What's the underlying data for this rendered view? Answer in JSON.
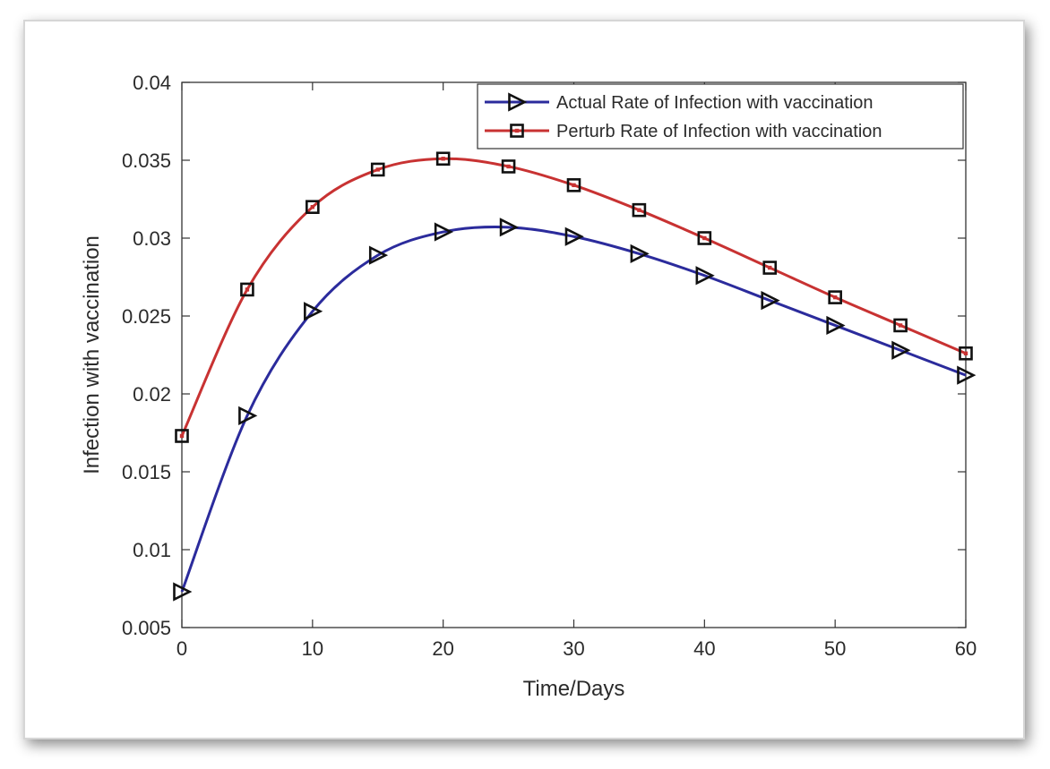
{
  "chart_data": {
    "type": "line",
    "xlabel": "Time/Days",
    "ylabel": "Infection with vaccination",
    "xlim": [
      0,
      60
    ],
    "ylim": [
      0.005,
      0.04
    ],
    "x_ticks": [
      0,
      10,
      20,
      30,
      40,
      50,
      60
    ],
    "x_tick_labels": [
      "0",
      "10",
      "20",
      "30",
      "40",
      "50",
      "60"
    ],
    "y_ticks": [
      0.005,
      0.01,
      0.015,
      0.02,
      0.025,
      0.03,
      0.035,
      0.04
    ],
    "y_tick_labels": [
      "0.005",
      "0.01",
      "0.015",
      "0.02",
      "0.025",
      "0.03",
      "0.035",
      "0.04"
    ],
    "grid": false,
    "legend_position": "top-right",
    "x": [
      0,
      5,
      10,
      15,
      20,
      25,
      30,
      35,
      40,
      45,
      50,
      55,
      60
    ],
    "series": [
      {
        "name": "Actual Rate of Infection with vaccination",
        "color": "#2b2b9c",
        "marker": "triangle-right",
        "values": [
          0.0073,
          0.0186,
          0.0253,
          0.0289,
          0.0304,
          0.0307,
          0.0301,
          0.029,
          0.0276,
          0.026,
          0.0244,
          0.0228,
          0.0212
        ]
      },
      {
        "name": "Perturb Rate of Infection with vaccination",
        "color": "#c83232",
        "marker": "square",
        "values": [
          0.0173,
          0.0267,
          0.032,
          0.0344,
          0.0351,
          0.0346,
          0.0334,
          0.0318,
          0.03,
          0.0281,
          0.0262,
          0.0244,
          0.0226
        ]
      }
    ]
  }
}
